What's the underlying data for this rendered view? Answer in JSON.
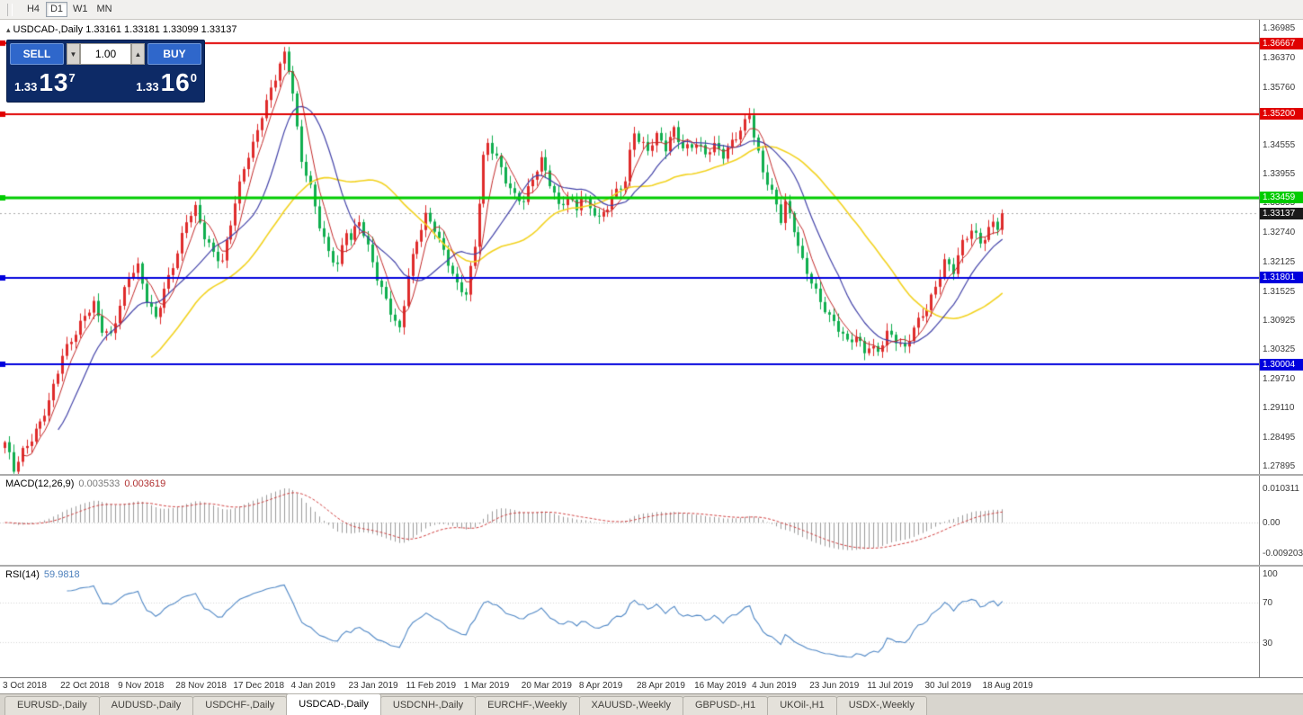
{
  "toolbar": {
    "timeframes": [
      {
        "label": "H4",
        "active": false
      },
      {
        "label": "D1",
        "active": true
      },
      {
        "label": "W1",
        "active": false
      },
      {
        "label": "MN",
        "active": false
      }
    ]
  },
  "header": {
    "symbol": "USDCAD-,Daily",
    "ohlc": "1.33161 1.33181 1.33099 1.33137"
  },
  "icons": {
    "chart_icon": "▴",
    "spin_down": "▼",
    "spin_up": "▲"
  },
  "trade_panel": {
    "sell_label": "SELL",
    "buy_label": "BUY",
    "volume": "1.00",
    "bid_main": "1.33",
    "bid_big": "13",
    "bid_sup": "7",
    "ask_main": "1.33",
    "ask_big": "16",
    "ask_sup": "0"
  },
  "indicators": {
    "macd": {
      "name": "MACD(12,26,9)",
      "main_value": "0.003533",
      "signal_value": "0.003619",
      "axis": [
        "0.010311",
        "0.00",
        "-0.009203"
      ]
    },
    "rsi": {
      "name": "RSI(14)",
      "value": "59.9818",
      "axis": [
        "100",
        "70",
        "30"
      ],
      "levels": [
        70,
        30
      ]
    }
  },
  "chart_data": {
    "type": "candlestick",
    "symbol": "USDCAD",
    "timeframe": "Daily",
    "current_price": 1.33137,
    "price_axis_labels": [
      "1.36985",
      "1.36370",
      "1.35760",
      "1.35145",
      "1.34555",
      "1.33955",
      "1.33355",
      "1.32740",
      "1.32125",
      "1.31525",
      "1.30925",
      "1.30325",
      "1.29710",
      "1.29110",
      "1.28495",
      "1.27895"
    ],
    "price_range": {
      "top": 1.36985,
      "bottom": 1.27895
    },
    "hlines": [
      {
        "price": 1.36667,
        "color": "#e00000",
        "width": 2
      },
      {
        "price": 1.352,
        "color": "#e00000",
        "width": 2
      },
      {
        "price": 1.33459,
        "color": "#00cc00",
        "width": 3
      },
      {
        "price": 1.31801,
        "color": "#0000dd",
        "width": 2
      },
      {
        "price": 1.30004,
        "color": "#0000dd",
        "width": 2
      }
    ],
    "date_ticks": [
      "3 Oct 2018",
      "22 Oct 2018",
      "9 Nov 2018",
      "28 Nov 2018",
      "17 Dec 2018",
      "4 Jan 2019",
      "23 Jan 2019",
      "11 Feb 2019",
      "1 Mar 2019",
      "20 Mar 2019",
      "8 Apr 2019",
      "28 Apr 2019",
      "16 May 2019",
      "4 Jun 2019",
      "23 Jun 2019",
      "11 Jul 2019",
      "30 Jul 2019",
      "18 Aug 2019"
    ],
    "bars_per_tick": 13,
    "bar_count": 226,
    "close_keypoints": [
      [
        0,
        1.283
      ],
      [
        2,
        1.2775
      ],
      [
        4,
        1.282
      ],
      [
        7,
        1.287
      ],
      [
        10,
        1.2925
      ],
      [
        13,
        1.301
      ],
      [
        16,
        1.306
      ],
      [
        18,
        1.3105
      ],
      [
        20,
        1.3135
      ],
      [
        22,
        1.308
      ],
      [
        24,
        1.306
      ],
      [
        26,
        1.3115
      ],
      [
        28,
        1.3175
      ],
      [
        30,
        1.32
      ],
      [
        32,
        1.314
      ],
      [
        34,
        1.3105
      ],
      [
        36,
        1.316
      ],
      [
        39,
        1.3225
      ],
      [
        41,
        1.329
      ],
      [
        43,
        1.332
      ],
      [
        45,
        1.327
      ],
      [
        47,
        1.324
      ],
      [
        49,
        1.322
      ],
      [
        52,
        1.333
      ],
      [
        54,
        1.34
      ],
      [
        56,
        1.345
      ],
      [
        58,
        1.352
      ],
      [
        60,
        1.358
      ],
      [
        62,
        1.363
      ],
      [
        63,
        1.3648
      ],
      [
        64,
        1.3615
      ],
      [
        65,
        1.356
      ],
      [
        66,
        1.348
      ],
      [
        67,
        1.3415
      ],
      [
        69,
        1.336
      ],
      [
        71,
        1.329
      ],
      [
        73,
        1.324
      ],
      [
        75,
        1.3215
      ],
      [
        77,
        1.328
      ],
      [
        78,
        1.3258
      ],
      [
        80,
        1.329
      ],
      [
        82,
        1.3235
      ],
      [
        84,
        1.318
      ],
      [
        86,
        1.314
      ],
      [
        88,
        1.3098
      ],
      [
        89,
        1.3078
      ],
      [
        90,
        1.313
      ],
      [
        91,
        1.3185
      ],
      [
        93,
        1.325
      ],
      [
        95,
        1.33
      ],
      [
        97,
        1.328
      ],
      [
        100,
        1.322
      ],
      [
        102,
        1.3172
      ],
      [
        104,
        1.3148
      ],
      [
        106,
        1.324
      ],
      [
        107,
        1.333
      ],
      [
        108,
        1.342
      ],
      [
        109,
        1.3452
      ],
      [
        111,
        1.343
      ],
      [
        113,
        1.339
      ],
      [
        115,
        1.3358
      ],
      [
        117,
        1.3342
      ],
      [
        119,
        1.338
      ],
      [
        121,
        1.3415
      ],
      [
        123,
        1.3372
      ],
      [
        125,
        1.3332
      ],
      [
        127,
        1.3356
      ],
      [
        129,
        1.3332
      ],
      [
        130,
        1.3352
      ],
      [
        132,
        1.3322
      ],
      [
        134,
        1.3292
      ],
      [
        136,
        1.3322
      ],
      [
        138,
        1.3362
      ],
      [
        140,
        1.3388
      ],
      [
        141,
        1.3448
      ],
      [
        142,
        1.3492
      ],
      [
        143,
        1.347
      ],
      [
        145,
        1.3442
      ],
      [
        147,
        1.3466
      ],
      [
        149,
        1.3442
      ],
      [
        151,
        1.3488
      ],
      [
        153,
        1.3456
      ],
      [
        156,
        1.3466
      ],
      [
        158,
        1.3436
      ],
      [
        160,
        1.3446
      ],
      [
        162,
        1.3426
      ],
      [
        164,
        1.346
      ],
      [
        166,
        1.3492
      ],
      [
        168,
        1.353
      ],
      [
        169,
        1.3482
      ],
      [
        171,
        1.34
      ],
      [
        173,
        1.335
      ],
      [
        175,
        1.3292
      ],
      [
        176,
        1.333
      ],
      [
        178,
        1.3282
      ],
      [
        180,
        1.3222
      ],
      [
        182,
        1.318
      ],
      [
        184,
        1.3132
      ],
      [
        186,
        1.3092
      ],
      [
        188,
        1.3066
      ],
      [
        190,
        1.3042
      ],
      [
        192,
        1.3062
      ],
      [
        194,
        1.3036
      ],
      [
        195,
        1.3046
      ],
      [
        197,
        1.303
      ],
      [
        199,
        1.306
      ],
      [
        201,
        1.3042
      ],
      [
        203,
        1.3026
      ],
      [
        205,
        1.308
      ],
      [
        207,
        1.3112
      ],
      [
        208,
        1.3126
      ],
      [
        210,
        1.3166
      ],
      [
        212,
        1.321
      ],
      [
        214,
        1.3186
      ],
      [
        216,
        1.3246
      ],
      [
        218,
        1.328
      ],
      [
        220,
        1.3262
      ],
      [
        221,
        1.3272
      ],
      [
        223,
        1.3302
      ],
      [
        224,
        1.3288
      ],
      [
        225,
        1.33137
      ]
    ],
    "colors": {
      "up": "#df2b2b",
      "down": "#0fae4e",
      "ma_fast": "#c22828",
      "ma_mid": "#4242a8",
      "ma_slow": "#f2d21f",
      "macd_hist": "#9b9b9b",
      "macd_signal": "#d04040",
      "rsi": "#4f87c5",
      "hline_red": "#e00000",
      "hline_green": "#00cc00",
      "hline_blue": "#0000dd",
      "current_badge": "#1a1a1a"
    },
    "ma_periods": {
      "fast": 5,
      "mid": 13,
      "slow": 34
    }
  },
  "tabs": {
    "active_index": 3,
    "items": [
      {
        "label": "EURUSD-,Daily"
      },
      {
        "label": "AUDUSD-,Daily"
      },
      {
        "label": "USDCHF-,Daily"
      },
      {
        "label": "USDCAD-,Daily"
      },
      {
        "label": "USDCNH-,Daily"
      },
      {
        "label": "EURCHF-,Weekly"
      },
      {
        "label": "XAUUSD-,Weekly"
      },
      {
        "label": "GBPUSD-,H1"
      },
      {
        "label": "UKOil-,H1"
      },
      {
        "label": "USDX-,Weekly"
      }
    ]
  }
}
